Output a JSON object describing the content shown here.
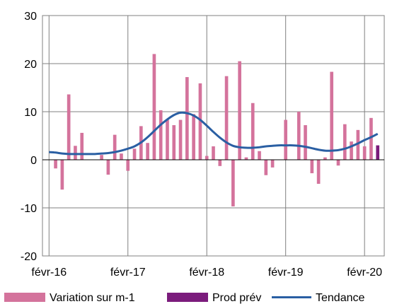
{
  "chart_data": {
    "type": "bar",
    "title": "",
    "xlabel": "",
    "ylabel": "",
    "ylim": [
      -20,
      30
    ],
    "y_ticks": [
      30,
      20,
      10,
      0,
      -10,
      -20
    ],
    "x_tick_labels": [
      "févr-16",
      "févr-17",
      "févr-18",
      "févr-19",
      "févr-20"
    ],
    "grid": true,
    "legend_position": "bottom",
    "months": 50,
    "series": [
      {
        "name": "Variation sur m-1",
        "type": "bar",
        "color": "#d4739c",
        "values": [
          0,
          -1.8,
          -6.2,
          13.6,
          2.9,
          5.6,
          0,
          0,
          1.0,
          -3.1,
          5.2,
          1.3,
          -2.3,
          2.3,
          7.0,
          3.5,
          22.0,
          10.3,
          8.3,
          7.2,
          8.3,
          17.2,
          9.5,
          15.9,
          0.8,
          2.8,
          -1.3,
          17.4,
          -9.7,
          20.5,
          0.5,
          11.8,
          1.8,
          -3.2,
          -1.6,
          0,
          8.3,
          0,
          10.0,
          7.2,
          -2.8,
          -5.0,
          0.5,
          18.3,
          -1.2,
          7.4,
          3.8,
          6.2,
          2.8,
          8.7
        ]
      },
      {
        "name": "Prod prév",
        "type": "bar",
        "color": "#7b1c7c",
        "values": [
          null,
          null,
          null,
          null,
          null,
          null,
          null,
          null,
          null,
          null,
          null,
          null,
          null,
          null,
          null,
          null,
          null,
          null,
          null,
          null,
          null,
          null,
          null,
          null,
          null,
          null,
          null,
          null,
          null,
          null,
          null,
          null,
          null,
          null,
          null,
          null,
          null,
          null,
          null,
          null,
          null,
          null,
          null,
          null,
          null,
          null,
          null,
          null,
          null,
          null,
          3.0
        ]
      },
      {
        "name": "Tendance",
        "type": "line",
        "color": "#2a5fa3",
        "values": [
          1.6,
          1.5,
          1.3,
          1.2,
          1.2,
          1.2,
          1.2,
          1.2,
          1.3,
          1.4,
          1.6,
          1.9,
          2.3,
          2.8,
          3.6,
          4.7,
          6.0,
          7.3,
          8.4,
          9.3,
          9.8,
          9.7,
          9.2,
          8.3,
          7.1,
          5.8,
          4.6,
          3.6,
          2.9,
          2.6,
          2.5,
          2.5,
          2.6,
          2.8,
          2.9,
          3.0,
          3.0,
          3.0,
          2.9,
          2.7,
          2.4,
          2.1,
          1.9,
          1.9,
          2.0,
          2.3,
          2.8,
          3.4,
          4.1,
          4.7,
          5.4
        ]
      }
    ]
  }
}
